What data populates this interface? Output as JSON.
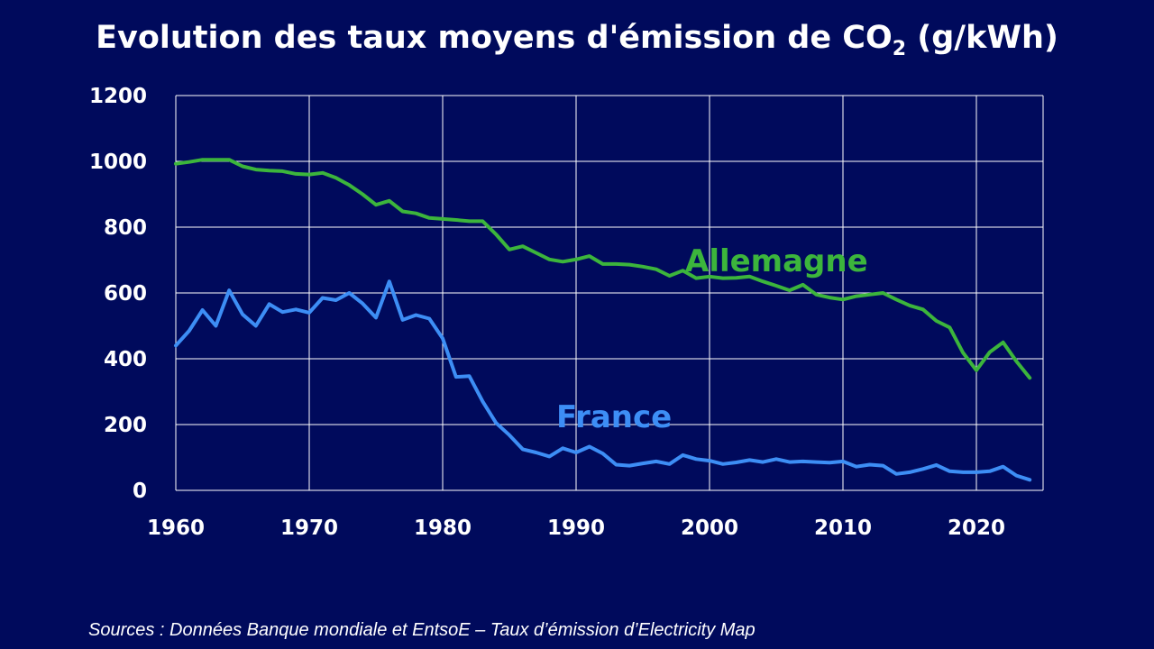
{
  "title": {
    "prefix": "Evolution des taux moyens d'émission de CO",
    "subscript": "2",
    "suffix": " (g/kWh)"
  },
  "source": "Sources : Données Banque mondiale et EntsoE – Taux d’émission d’Electricity Map",
  "colors": {
    "background": "#000a5c",
    "grid": "#ffffff",
    "allemagne": "#3cb53c",
    "france": "#3d8ef5"
  },
  "chart_data": {
    "type": "line",
    "title": "Evolution des taux moyens d'émission de CO2 (g/kWh)",
    "xlabel": "",
    "ylabel": "",
    "xlim": [
      1960,
      2025
    ],
    "ylim": [
      0,
      1200
    ],
    "xticks": [
      1960,
      1970,
      1980,
      1990,
      2000,
      2010,
      2020
    ],
    "yticks": [
      0,
      200,
      400,
      600,
      800,
      1000,
      1200
    ],
    "grid": true,
    "legend": "none",
    "x": [
      1960,
      1961,
      1962,
      1963,
      1964,
      1965,
      1966,
      1967,
      1968,
      1969,
      1970,
      1971,
      1972,
      1973,
      1974,
      1975,
      1976,
      1977,
      1978,
      1979,
      1980,
      1981,
      1982,
      1983,
      1984,
      1985,
      1986,
      1987,
      1988,
      1989,
      1990,
      1991,
      1992,
      1993,
      1994,
      1995,
      1996,
      1997,
      1998,
      1999,
      2000,
      2001,
      2002,
      2003,
      2004,
      2005,
      2006,
      2007,
      2008,
      2009,
      2010,
      2011,
      2012,
      2013,
      2014,
      2015,
      2016,
      2017,
      2018,
      2019,
      2020,
      2021,
      2022,
      2023,
      2024
    ],
    "series": [
      {
        "name": "Allemagne",
        "values": [
          993,
          998,
          1005,
          1005,
          1005,
          985,
          975,
          972,
          970,
          962,
          960,
          965,
          950,
          928,
          900,
          868,
          880,
          848,
          842,
          828,
          825,
          822,
          818,
          818,
          778,
          732,
          742,
          722,
          702,
          695,
          702,
          712,
          688,
          688,
          686,
          680,
          672,
          652,
          668,
          645,
          650,
          645,
          646,
          650,
          635,
          622,
          608,
          625,
          595,
          586,
          580,
          590,
          595,
          600,
          580,
          562,
          550,
          515,
          495,
          418,
          365,
          420,
          450,
          392,
          342
        ]
      },
      {
        "name": "France",
        "values": [
          440,
          485,
          548,
          500,
          608,
          535,
          500,
          566,
          542,
          550,
          540,
          585,
          578,
          600,
          568,
          525,
          635,
          518,
          533,
          522,
          462,
          345,
          347,
          270,
          205,
          168,
          125,
          115,
          103,
          128,
          115,
          133,
          112,
          78,
          75,
          82,
          88,
          80,
          107,
          95,
          90,
          80,
          85,
          92,
          86,
          95,
          86,
          88,
          86,
          84,
          88,
          72,
          78,
          75,
          50,
          55,
          65,
          77,
          58,
          55,
          55,
          58,
          72,
          45,
          32
        ]
      }
    ],
    "annotations": [
      "Allemagne",
      "France"
    ]
  }
}
